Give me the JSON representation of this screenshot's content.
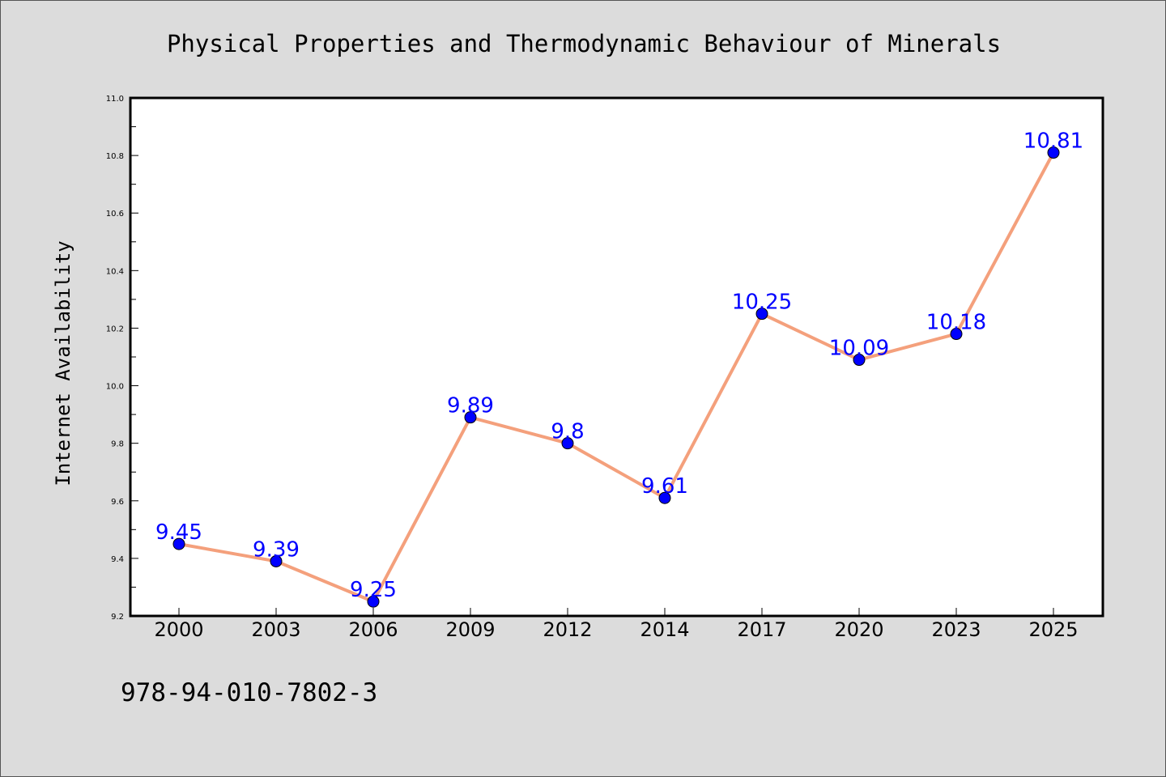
{
  "chart_data": {
    "type": "line",
    "title": "Physical Properties and Thermodynamic Behaviour of Minerals",
    "xlabel": "",
    "ylabel": "Internet Availability",
    "categories": [
      "2000",
      "2003",
      "2006",
      "2009",
      "2012",
      "2014",
      "2017",
      "2020",
      "2023",
      "2025"
    ],
    "series": [
      {
        "values": [
          9.45,
          9.39,
          9.25,
          9.89,
          9.8,
          9.61,
          10.25,
          10.09,
          10.18,
          10.81
        ],
        "data_labels": [
          "9.45",
          "9.39",
          "9.25",
          "9.89",
          "9.8",
          "9.61",
          "10.25",
          "10.09",
          "10.18",
          "10.81"
        ],
        "line_color": "#f4a07c",
        "marker_color": "#0000ff",
        "label_color": "#0000ff"
      }
    ],
    "ylim": [
      9.2,
      11.0
    ],
    "y_major_ticks": [
      "9.2",
      "9.4",
      "9.6",
      "9.8",
      "10.0",
      "10.2",
      "10.4",
      "10.6",
      "10.8",
      "11.0"
    ],
    "grid": false,
    "background_color": "#dcdcdc",
    "plot_background_color": "#ffffff"
  },
  "footer": {
    "isbn": "978-94-010-7802-3"
  }
}
